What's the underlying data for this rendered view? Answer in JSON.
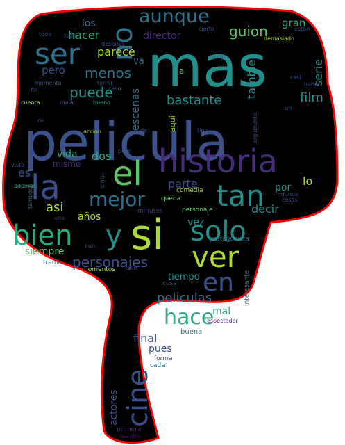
{
  "colors": {
    "background": "#ffffff",
    "shape_fill": "#000000",
    "outline": "#ff0000"
  },
  "palette": [
    "#440154",
    "#472c7a",
    "#3b518b",
    "#2c718e",
    "#21908d",
    "#27ad81",
    "#5cc863",
    "#aadc32",
    "#fde725"
  ],
  "words": [
    {
      "text": "pelicula",
      "color": 2,
      "size": 76,
      "rot": 0
    },
    {
      "text": "mas",
      "color": 4,
      "size": 82,
      "rot": 0
    },
    {
      "text": "si",
      "color": 7,
      "size": 60,
      "rot": 0
    },
    {
      "text": "historia",
      "color": 1,
      "size": 46,
      "rot": 0
    },
    {
      "text": "el",
      "color": 6,
      "size": 48,
      "rot": 0
    },
    {
      "text": "la",
      "color": 2,
      "size": 48,
      "rot": 0
    },
    {
      "text": "tan",
      "color": 4,
      "size": 42,
      "rot": 0
    },
    {
      "text": "ver",
      "color": 7,
      "size": 42,
      "rot": 0
    },
    {
      "text": "ser",
      "color": 3,
      "size": 42,
      "rot": 0
    },
    {
      "text": "no",
      "color": 3,
      "size": 40,
      "rot": -90
    },
    {
      "text": "bien",
      "color": 5,
      "size": 40,
      "rot": 0
    },
    {
      "text": "solo",
      "color": 4,
      "size": 40,
      "rot": 0
    },
    {
      "text": "cine",
      "color": 2,
      "size": 40,
      "rot": -90
    },
    {
      "text": "y",
      "color": 4,
      "size": 40,
      "rot": 0
    },
    {
      "text": "en",
      "color": 2,
      "size": 36,
      "rot": 0
    },
    {
      "text": "hace",
      "color": 5,
      "size": 30,
      "rot": 0
    },
    {
      "text": "mejor",
      "color": 3,
      "size": 28,
      "rot": 0
    },
    {
      "text": "aunque",
      "color": 3,
      "size": 27,
      "rot": 0
    },
    {
      "text": "puede",
      "color": 4,
      "size": 20,
      "rot": 0
    },
    {
      "text": "personajes",
      "color": 2,
      "size": 20,
      "rot": 0
    },
    {
      "text": "guion",
      "color": 6,
      "size": 20,
      "rot": 0
    },
    {
      "text": "menos",
      "color": 3,
      "size": 20,
      "rot": 0
    },
    {
      "text": "bastante",
      "color": 4,
      "size": 18,
      "rot": 0
    },
    {
      "text": "peliculas",
      "color": 3,
      "size": 18,
      "rot": 0
    },
    {
      "text": "film",
      "color": 4,
      "size": 18,
      "rot": 0
    },
    {
      "text": "asi",
      "color": 7,
      "size": 18,
      "rot": 0
    },
    {
      "text": "final",
      "color": 2,
      "size": 16,
      "rot": 0
    },
    {
      "text": "parte",
      "color": 2,
      "size": 16,
      "rot": 0
    },
    {
      "text": "parece",
      "color": 7,
      "size": 16,
      "rot": 0
    },
    {
      "text": "hacer",
      "color": 5,
      "size": 16,
      "rot": 0
    },
    {
      "text": "dos",
      "color": 5,
      "size": 16,
      "rot": 0
    },
    {
      "text": "decir",
      "color": 4,
      "size": 16,
      "rot": 0
    },
    {
      "text": "serie",
      "color": 4,
      "size": 16,
      "rot": -90
    },
    {
      "text": "tambien",
      "color": 4,
      "size": 16,
      "rot": -90
    },
    {
      "text": "escenas",
      "color": 3,
      "size": 15,
      "rot": -90
    },
    {
      "text": "gran",
      "color": 5,
      "size": 15,
      "rot": 0
    },
    {
      "text": "lo",
      "color": 7,
      "size": 16,
      "rot": 0
    },
    {
      "text": "es",
      "color": 2,
      "size": 16,
      "rot": 0
    },
    {
      "text": "pero",
      "color": 2,
      "size": 15,
      "rot": 0
    },
    {
      "text": "vida",
      "color": 5,
      "size": 14,
      "rot": 0
    },
    {
      "text": "pues",
      "color": 2,
      "size": 14,
      "rot": 0
    },
    {
      "text": "los",
      "color": 3,
      "size": 14,
      "rot": 0
    },
    {
      "text": "actores",
      "color": 2,
      "size": 14,
      "rot": -90
    },
    {
      "text": "mal",
      "color": 5,
      "size": 14,
      "rot": 0
    },
    {
      "text": "siempre",
      "color": 6,
      "size": 14,
      "rot": 0
    },
    {
      "text": "años",
      "color": 7,
      "size": 14,
      "rot": 0
    },
    {
      "text": "por",
      "color": 4,
      "size": 14,
      "rot": 0
    },
    {
      "text": "director",
      "color": 1,
      "size": 14,
      "rot": 0
    },
    {
      "text": "vez",
      "color": 4,
      "size": 14,
      "rot": 0
    },
    {
      "text": "tiempo",
      "color": 4,
      "size": 13,
      "rot": 0
    },
    {
      "text": "va",
      "color": 3,
      "size": 13,
      "rot": 0
    },
    {
      "text": "mismo",
      "color": 1,
      "size": 12,
      "rot": 0
    },
    {
      "text": "a",
      "color": 6,
      "size": 12,
      "rot": 0
    },
    {
      "text": "aqui",
      "color": 7,
      "size": 11,
      "rot": -90
    },
    {
      "text": "buena",
      "color": 3,
      "size": 10,
      "rot": 0
    },
    {
      "text": "forma",
      "color": 2,
      "size": 9,
      "rot": 0
    },
    {
      "text": "cada",
      "color": 3,
      "size": 9,
      "rot": 0
    },
    {
      "text": "primera",
      "color": 1,
      "size": 9,
      "rot": 0
    },
    {
      "text": "resulta",
      "color": 0,
      "size": 9,
      "rot": 0
    },
    {
      "text": "comedia",
      "color": 7,
      "size": 9,
      "rot": 0
    },
    {
      "text": "personaje",
      "color": 6,
      "size": 9,
      "rot": 0
    },
    {
      "text": "protagonista",
      "color": 3,
      "size": 9,
      "rot": 0
    },
    {
      "text": "queda",
      "color": 6,
      "size": 9,
      "rot": 0
    },
    {
      "text": "minutos",
      "color": 1,
      "size": 9,
      "rot": 0
    },
    {
      "text": "momentos",
      "color": 7,
      "size": 9,
      "rot": 0
    },
    {
      "text": "creo",
      "color": 1,
      "size": 8,
      "rot": 0
    },
    {
      "text": "trama",
      "color": 3,
      "size": 9,
      "rot": 0
    },
    {
      "text": "aun",
      "color": 2,
      "size": 8,
      "rot": 0
    },
    {
      "text": "cosa",
      "color": 2,
      "size": 9,
      "rot": 0
    },
    {
      "text": "interesante",
      "color": 3,
      "size": 9,
      "rot": -90
    },
    {
      "text": "mundo",
      "color": 2,
      "size": 8,
      "rot": 0
    },
    {
      "text": "cosas",
      "color": 2,
      "size": 8,
      "rot": 0
    },
    {
      "text": "espectador",
      "color": 1,
      "size": 8,
      "rot": 0
    },
    {
      "text": "una",
      "color": 1,
      "size": 8,
      "rot": 0
    },
    {
      "text": "cinta",
      "color": 2,
      "size": 8,
      "rot": -90
    },
    {
      "text": "tipo",
      "color": 2,
      "size": 8,
      "rot": 0
    },
    {
      "text": "da",
      "color": 2,
      "size": 8,
      "rot": 0
    },
    {
      "text": "accion",
      "color": 7,
      "size": 8,
      "rot": 0
    },
    {
      "text": "peor",
      "color": 2,
      "size": 8,
      "rot": 0
    },
    {
      "text": "argumento",
      "color": 2,
      "size": 8,
      "rot": -90
    },
    {
      "text": "un",
      "color": 2,
      "size": 8,
      "rot": 0
    },
    {
      "text": "haber",
      "color": 2,
      "size": 8,
      "rot": 0
    },
    {
      "text": "casi",
      "color": 2,
      "size": 8,
      "rot": 0
    },
    {
      "text": "hecho",
      "color": 2,
      "size": 8,
      "rot": 0
    },
    {
      "text": "demasiado",
      "color": 7,
      "size": 8,
      "rot": 0
    },
    {
      "text": "estan",
      "color": 2,
      "size": 8,
      "rot": 0
    },
    {
      "text": "cierto",
      "color": 2,
      "size": 8,
      "rot": 0
    },
    {
      "text": "todo",
      "color": 2,
      "size": 8,
      "rot": 0
    },
    {
      "text": "toda",
      "color": 2,
      "size": 8,
      "rot": 0
    },
    {
      "text": "despues",
      "color": 2,
      "size": 8,
      "rot": 0
    },
    {
      "text": "momento",
      "color": 2,
      "size": 8,
      "rot": 0
    },
    {
      "text": "terror",
      "color": 2,
      "size": 8,
      "rot": 0
    },
    {
      "text": "fin",
      "color": 2,
      "size": 8,
      "rot": 0
    },
    {
      "text": "caso",
      "color": 2,
      "size": 8,
      "rot": 0
    },
    {
      "text": "cuenta",
      "color": 7,
      "size": 8,
      "rot": 0
    },
    {
      "text": "mala",
      "color": 2,
      "size": 8,
      "rot": 0
    },
    {
      "text": "bueno",
      "color": 5,
      "size": 8,
      "rot": 0
    },
    {
      "text": "de",
      "color": 2,
      "size": 8,
      "rot": 0
    },
    {
      "text": "visto",
      "color": 2,
      "size": 8,
      "rot": 0
    },
    {
      "text": "ademas",
      "color": 5,
      "size": 8,
      "rot": 0
    },
    {
      "text": "tampoco",
      "color": 3,
      "size": 8,
      "rot": -90
    }
  ]
}
